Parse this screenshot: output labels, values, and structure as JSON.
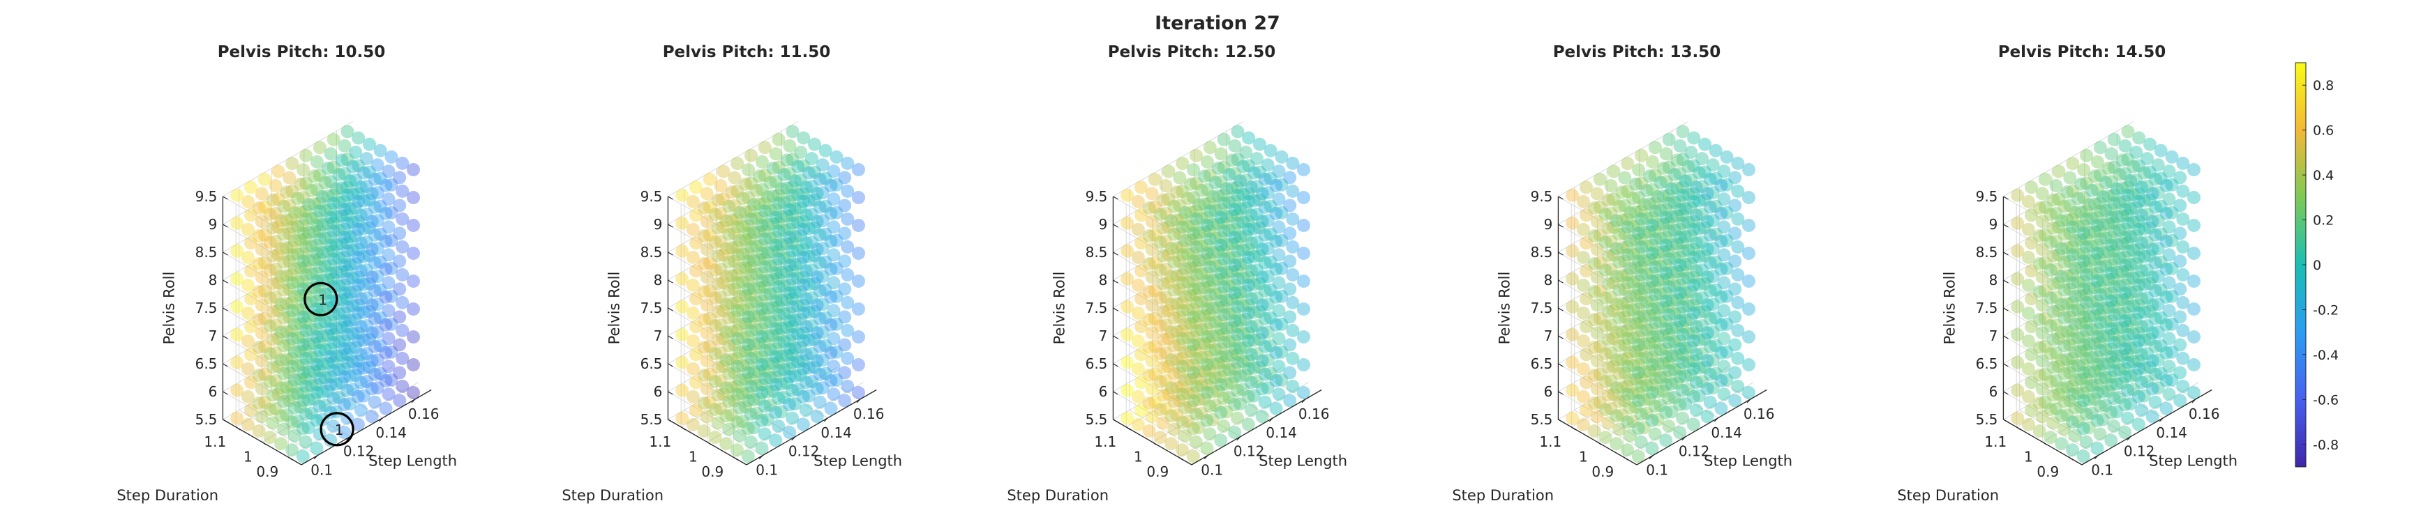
{
  "figure": {
    "title": "Iteration 27"
  },
  "colors": {
    "colormap": [
      "#3e26a8",
      "#4760f0",
      "#2c9df2",
      "#18bfb5",
      "#7dca55",
      "#f3b836",
      "#f9fb15"
    ],
    "axis": "#262626",
    "grid": "#d9d9d9",
    "marker_ring": "#000000"
  },
  "colorbar": {
    "min": -0.9,
    "max": 0.9,
    "ticks": [
      "0.8",
      "0.6",
      "0.4",
      "0.2",
      "0",
      "-0.2",
      "-0.4",
      "-0.6",
      "-0.8"
    ],
    "tick_values": [
      0.8,
      0.6,
      0.4,
      0.2,
      0,
      -0.2,
      -0.4,
      -0.6,
      -0.8
    ]
  },
  "chart_data": [
    {
      "type": "scatter3d",
      "title": "Pelvis Pitch: 10.50",
      "xlabel": "Step Length",
      "ylabel": "Step Duration",
      "zlabel": "Pelvis Roll",
      "xticks": [
        "0.1",
        "0.12",
        "0.14",
        "0.16"
      ],
      "yticks": [
        "0.9",
        "1",
        "1.1"
      ],
      "zticks": [
        "5.5",
        "6",
        "6.5",
        "7",
        "7.5",
        "8",
        "8.5",
        "9",
        "9.5"
      ],
      "xlim": [
        0.09,
        0.17
      ],
      "ylim": [
        0.85,
        1.15
      ],
      "zlim": [
        5.5,
        9.5
      ],
      "grid": "9 x 7 x 9 uniform grid, colored by value",
      "value_field": {
        "base": 0.05,
        "length_coef": -0.45,
        "duration_coef": 0.35,
        "roll_coef": 0.1
      },
      "highlighted_points": [
        {
          "x": 0.11,
          "y": 0.9,
          "z": 8.0,
          "label": "1"
        },
        {
          "x": 0.12,
          "y": 0.9,
          "z": 5.5,
          "label": "1"
        }
      ]
    },
    {
      "type": "scatter3d",
      "title": "Pelvis Pitch: 11.50",
      "xlabel": "Step Length",
      "ylabel": "Step Duration",
      "zlabel": "Pelvis Roll",
      "xticks": [
        "0.1",
        "0.12",
        "0.14",
        "0.16"
      ],
      "yticks": [
        "0.9",
        "1",
        "1.1"
      ],
      "zticks": [
        "5.5",
        "6",
        "6.5",
        "7",
        "7.5",
        "8",
        "8.5",
        "9",
        "9.5"
      ],
      "xlim": [
        0.09,
        0.17
      ],
      "ylim": [
        0.85,
        1.15
      ],
      "zlim": [
        5.5,
        9.5
      ],
      "grid": "9 x 7 x 9 uniform grid, colored by value",
      "value_field": {
        "base": 0.15,
        "length_coef": -0.35,
        "duration_coef": 0.3,
        "roll_coef": 0.05
      },
      "highlighted_points": []
    },
    {
      "type": "scatter3d",
      "title": "Pelvis Pitch: 12.50",
      "xlabel": "Step Length",
      "ylabel": "Step Duration",
      "zlabel": "Pelvis Roll",
      "xticks": [
        "0.1",
        "0.12",
        "0.14",
        "0.16"
      ],
      "yticks": [
        "0.9",
        "1",
        "1.1"
      ],
      "zticks": [
        "5.5",
        "6",
        "6.5",
        "7",
        "7.5",
        "8",
        "8.5",
        "9",
        "9.5"
      ],
      "xlim": [
        0.09,
        0.17
      ],
      "ylim": [
        0.85,
        1.15
      ],
      "zlim": [
        5.5,
        9.5
      ],
      "grid": "9 x 7 x 9 uniform grid, colored by value",
      "value_field": {
        "base": 0.25,
        "length_coef": -0.3,
        "duration_coef": 0.25,
        "roll_coef": -0.1
      },
      "highlighted_points": []
    },
    {
      "type": "scatter3d",
      "title": "Pelvis Pitch: 13.50",
      "xlabel": "Step Length",
      "ylabel": "Step Duration",
      "zlabel": "Pelvis Roll",
      "xticks": [
        "0.1",
        "0.12",
        "0.14",
        "0.16"
      ],
      "yticks": [
        "0.9",
        "1",
        "1.1"
      ],
      "zticks": [
        "5.5",
        "6",
        "6.5",
        "7",
        "7.5",
        "8",
        "8.5",
        "9",
        "9.5"
      ],
      "xlim": [
        0.09,
        0.17
      ],
      "ylim": [
        0.85,
        1.15
      ],
      "zlim": [
        5.5,
        9.5
      ],
      "grid": "9 x 7 x 9 uniform grid, colored by value",
      "value_field": {
        "base": 0.2,
        "length_coef": -0.2,
        "duration_coef": 0.2,
        "roll_coef": -0.05
      },
      "highlighted_points": []
    },
    {
      "type": "scatter3d",
      "title": "Pelvis Pitch: 14.50",
      "xlabel": "Step Length",
      "ylabel": "Step Duration",
      "zlabel": "Pelvis Roll",
      "xticks": [
        "0.1",
        "0.12",
        "0.14",
        "0.16"
      ],
      "yticks": [
        "0.9",
        "1",
        "1.1"
      ],
      "zticks": [
        "5.5",
        "6",
        "6.5",
        "7",
        "7.5",
        "8",
        "8.5",
        "9",
        "9.5"
      ],
      "xlim": [
        0.09,
        0.17
      ],
      "ylim": [
        0.85,
        1.15
      ],
      "zlim": [
        5.5,
        9.5
      ],
      "grid": "9 x 7 x 9 uniform grid, colored by value",
      "value_field": {
        "base": 0.15,
        "length_coef": -0.15,
        "duration_coef": 0.15,
        "roll_coef": 0.0
      },
      "highlighted_points": []
    }
  ]
}
